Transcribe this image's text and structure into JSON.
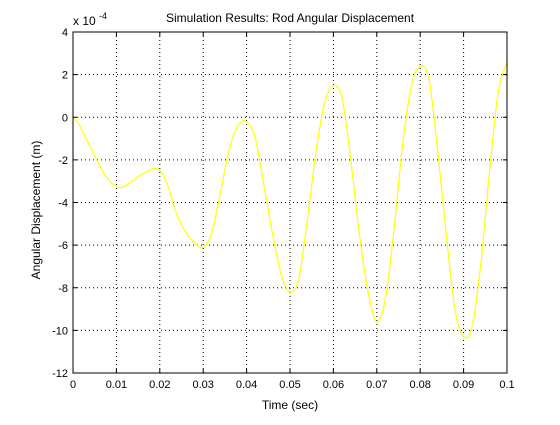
{
  "chart_data": {
    "type": "line",
    "title": "Simulation Results: Rod Angular Displacement",
    "xlabel": "Time (sec)",
    "ylabel": "Angular Displacement (m)",
    "y_multiplier_label": "x 10",
    "y_multiplier_exponent": "-4",
    "xlim": [
      0,
      0.1
    ],
    "ylim": [
      -12,
      4
    ],
    "x_ticks": [
      0,
      0.01,
      0.02,
      0.03,
      0.04,
      0.05,
      0.06,
      0.07,
      0.08,
      0.09,
      0.1
    ],
    "x_tick_labels": [
      "0",
      "0.01",
      "0.02",
      "0.03",
      "0.04",
      "0.05",
      "0.06",
      "0.07",
      "0.08",
      "0.09",
      "0.1"
    ],
    "y_ticks": [
      -12,
      -10,
      -8,
      -6,
      -4,
      -2,
      0,
      2,
      4
    ],
    "y_tick_labels": [
      "-12",
      "-10",
      "-8",
      "-6",
      "-4",
      "-2",
      "0",
      "2",
      "4"
    ],
    "grid": true,
    "grid_style": "dotted",
    "series": [
      {
        "color": "#ffff00",
        "x": [
          0,
          0.0013,
          0.003,
          0.005,
          0.007,
          0.009,
          0.011,
          0.013,
          0.015,
          0.0175,
          0.019,
          0.0205,
          0.022,
          0.024,
          0.026,
          0.028,
          0.03,
          0.032,
          0.034,
          0.036,
          0.038,
          0.04,
          0.042,
          0.044,
          0.046,
          0.048,
          0.05,
          0.052,
          0.054,
          0.056,
          0.058,
          0.06,
          0.062,
          0.064,
          0.066,
          0.068,
          0.07,
          0.072,
          0.074,
          0.076,
          0.078,
          0.08,
          0.082,
          0.084,
          0.086,
          0.088,
          0.09,
          0.092,
          0.094,
          0.096,
          0.098,
          0.1
        ],
        "y": [
          0.0,
          -0.3,
          -1.0,
          -1.8,
          -2.6,
          -3.1,
          -3.3,
          -3.1,
          -2.8,
          -2.5,
          -2.4,
          -2.6,
          -3.3,
          -4.6,
          -5.4,
          -5.9,
          -6.1,
          -5.4,
          -3.5,
          -1.5,
          -0.4,
          -0.2,
          -1.0,
          -3.2,
          -5.5,
          -7.4,
          -8.2,
          -7.6,
          -4.8,
          -1.6,
          0.7,
          1.5,
          0.9,
          -2.0,
          -5.5,
          -8.2,
          -9.6,
          -8.5,
          -5.2,
          -1.2,
          1.5,
          2.4,
          1.8,
          -1.5,
          -5.5,
          -9.0,
          -10.3,
          -9.8,
          -6.8,
          -2.5,
          1.2,
          2.6
        ]
      }
    ]
  }
}
